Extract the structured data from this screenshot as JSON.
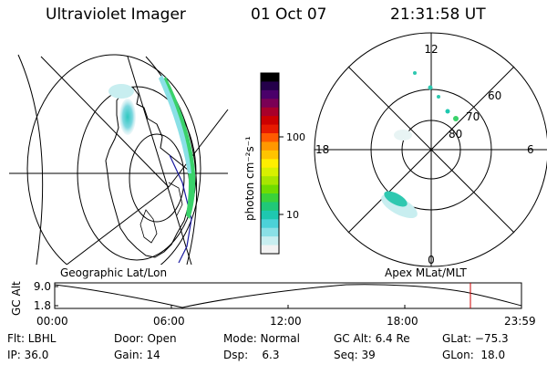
{
  "header": {
    "instrument": "Ultraviolet Imager",
    "date": "01 Oct 07",
    "time": "21:31:58 UT"
  },
  "colorbar": {
    "unit_label": "photon cm⁻²s⁻¹",
    "ticks": [
      "100",
      "10"
    ],
    "colors": [
      "#000000",
      "#24004a",
      "#4a006a",
      "#7a0055",
      "#a8002a",
      "#cc0000",
      "#e61a00",
      "#ff5a00",
      "#ff9800",
      "#ffc400",
      "#ffee00",
      "#d8f000",
      "#a8e600",
      "#70dc00",
      "#3ad23a",
      "#20c878",
      "#1ec8b0",
      "#4cd2d8",
      "#8ae0e6",
      "#c8eef0",
      "#f2f2f2"
    ]
  },
  "panels": {
    "geo_title": "Geographic Lat/Lon",
    "apex_title": "Apex MLat/MLT",
    "polar_labels": {
      "top": "12",
      "bottom": "0",
      "left": "18",
      "right": "6",
      "lat60": "60",
      "lat70": "70",
      "lat80": "80"
    }
  },
  "altitude_plot": {
    "ylabel": "GC Alt",
    "y_ticks": [
      "9.0",
      "1.8"
    ],
    "x_ticks": [
      "00:00",
      "06:00",
      "12:00",
      "18:00",
      "23:59"
    ]
  },
  "status": {
    "filter": "Flt: LBHL",
    "door": "Door: Open",
    "mode": "Mode: Normal",
    "gc_alt": "GC Alt: 6.4 Re",
    "glat": "GLat: −75.3",
    "ip": "IP: 36.0",
    "gain": "Gain: 14",
    "dsp": "Dsp:    6.3",
    "seq": "Seq: 39",
    "glon": "GLon:  18.0"
  }
}
